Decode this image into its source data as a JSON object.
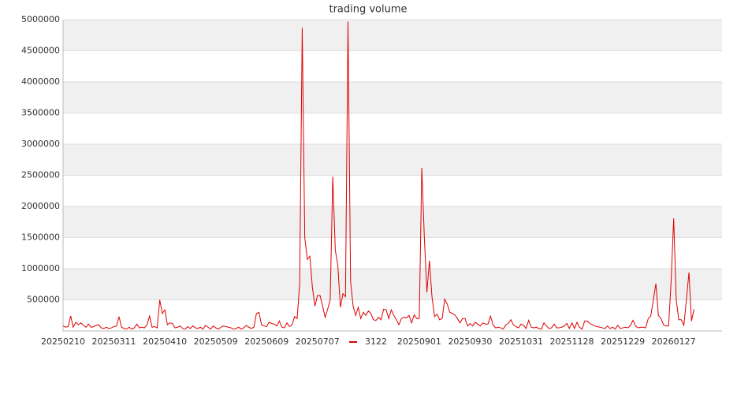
{
  "chart_data": {
    "type": "line",
    "title": "trading volume",
    "categories": [
      "20250210",
      null,
      null,
      null,
      null,
      null,
      null,
      null,
      null,
      null,
      null,
      null,
      null,
      null,
      null,
      null,
      null,
      null,
      null,
      null,
      "20250311",
      null,
      null,
      null,
      null,
      null,
      null,
      null,
      null,
      null,
      null,
      null,
      null,
      null,
      null,
      null,
      null,
      null,
      null,
      null,
      "20250410",
      null,
      null,
      null,
      null,
      null,
      null,
      null,
      null,
      null,
      null,
      null,
      null,
      null,
      null,
      null,
      null,
      null,
      null,
      null,
      "20250509",
      null,
      null,
      null,
      null,
      null,
      null,
      null,
      null,
      null,
      null,
      null,
      null,
      null,
      null,
      null,
      null,
      null,
      null,
      null,
      "20250609",
      null,
      null,
      null,
      null,
      null,
      null,
      null,
      null,
      null,
      null,
      null,
      null,
      null,
      null,
      null,
      null,
      null,
      null,
      null,
      "20250707",
      null,
      null,
      null,
      null,
      null,
      null,
      null,
      null,
      null,
      null,
      null,
      null,
      null,
      null,
      null,
      null,
      null,
      null,
      null,
      null,
      null,
      null,
      null,
      null,
      null,
      null,
      null,
      null,
      null,
      null,
      null,
      null,
      null,
      null,
      null,
      null,
      null,
      null,
      null,
      "20250901",
      null,
      null,
      null,
      null,
      null,
      null,
      null,
      null,
      null,
      null,
      null,
      null,
      null,
      null,
      null,
      null,
      null,
      null,
      null,
      "20250930",
      null,
      null,
      null,
      null,
      null,
      null,
      null,
      null,
      null,
      null,
      null,
      null,
      null,
      null,
      null,
      null,
      null,
      null,
      null,
      "20251031",
      null,
      null,
      null,
      null,
      null,
      null,
      null,
      null,
      null,
      null,
      null,
      null,
      null,
      null,
      null,
      null,
      null,
      null,
      null,
      "20251128",
      null,
      null,
      null,
      null,
      null,
      null,
      null,
      null,
      null,
      null,
      null,
      null,
      null,
      null,
      null,
      null,
      null,
      null,
      null,
      "20251229",
      null,
      null,
      null,
      null,
      null,
      null,
      null,
      null,
      null,
      null,
      null,
      null,
      null,
      null,
      null,
      null,
      null,
      null,
      null,
      "20260127",
      null,
      null,
      null,
      null,
      null,
      null,
      null,
      null,
      null,
      null,
      null,
      null,
      null,
      null,
      null,
      null,
      null,
      null,
      null
    ],
    "series": [
      {
        "name": "3122",
        "color": "#dd0000",
        "values": [
          80000,
          60000,
          70000,
          240000,
          60000,
          140000,
          100000,
          130000,
          90000,
          60000,
          110000,
          60000,
          70000,
          90000,
          100000,
          50000,
          40000,
          60000,
          40000,
          50000,
          70000,
          80000,
          230000,
          60000,
          40000,
          30000,
          60000,
          30000,
          50000,
          110000,
          50000,
          60000,
          50000,
          100000,
          240000,
          60000,
          70000,
          50000,
          500000,
          280000,
          340000,
          100000,
          130000,
          120000,
          50000,
          60000,
          80000,
          40000,
          30000,
          70000,
          40000,
          80000,
          50000,
          40000,
          60000,
          30000,
          90000,
          60000,
          30000,
          80000,
          50000,
          30000,
          60000,
          80000,
          70000,
          60000,
          50000,
          30000,
          40000,
          60000,
          30000,
          50000,
          90000,
          60000,
          40000,
          60000,
          280000,
          300000,
          100000,
          80000,
          70000,
          140000,
          120000,
          110000,
          80000,
          160000,
          60000,
          50000,
          130000,
          70000,
          100000,
          230000,
          200000,
          760000,
          4870000,
          1500000,
          1150000,
          1200000,
          700000,
          400000,
          570000,
          570000,
          400000,
          220000,
          350000,
          500000,
          2480000,
          1300000,
          1050000,
          380000,
          600000,
          550000,
          4970000,
          800000,
          400000,
          250000,
          380000,
          200000,
          300000,
          250000,
          320000,
          280000,
          180000,
          170000,
          220000,
          180000,
          350000,
          340000,
          200000,
          340000,
          250000,
          180000,
          100000,
          200000,
          220000,
          210000,
          250000,
          130000,
          260000,
          200000,
          200000,
          2620000,
          1500000,
          620000,
          1130000,
          550000,
          230000,
          270000,
          180000,
          200000,
          510000,
          430000,
          300000,
          280000,
          260000,
          200000,
          130000,
          200000,
          200000,
          80000,
          120000,
          80000,
          140000,
          110000,
          80000,
          130000,
          110000,
          110000,
          240000,
          100000,
          50000,
          60000,
          50000,
          30000,
          100000,
          120000,
          180000,
          100000,
          70000,
          50000,
          110000,
          90000,
          40000,
          170000,
          60000,
          50000,
          60000,
          40000,
          30000,
          130000,
          80000,
          40000,
          50000,
          110000,
          50000,
          50000,
          60000,
          80000,
          120000,
          40000,
          130000,
          40000,
          140000,
          60000,
          30000,
          160000,
          160000,
          120000,
          100000,
          80000,
          70000,
          60000,
          50000,
          40000,
          80000,
          40000,
          60000,
          30000,
          90000,
          40000,
          50000,
          60000,
          50000,
          90000,
          170000,
          80000,
          50000,
          60000,
          60000,
          50000,
          200000,
          240000,
          500000,
          760000,
          250000,
          200000,
          100000,
          80000,
          80000,
          800000,
          1810000,
          500000,
          180000,
          180000,
          90000,
          500000,
          940000,
          160000,
          350000,
          null,
          null,
          null,
          null,
          null,
          null,
          null,
          null,
          null,
          null,
          null
        ]
      }
    ],
    "ylim": [
      0,
      5000000
    ],
    "yticks": [
      500000,
      1000000,
      1500000,
      2000000,
      2500000,
      3000000,
      3500000,
      4000000,
      4500000,
      5000000
    ],
    "grid": true,
    "legend": "bottom"
  }
}
